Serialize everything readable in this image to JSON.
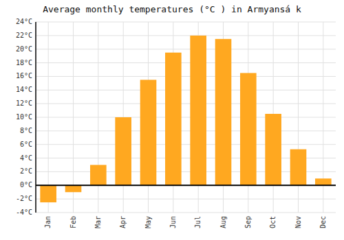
{
  "chart_data": {
    "type": "bar",
    "title": "Average monthly temperatures (°C ) in Armyansа́ k",
    "categories": [
      "Jan",
      "Feb",
      "Mar",
      "Apr",
      "May",
      "Jun",
      "Jul",
      "Aug",
      "Sep",
      "Oct",
      "Nov",
      "Dec"
    ],
    "values": [
      -2.5,
      -1.0,
      3.0,
      10.0,
      15.5,
      19.5,
      22.0,
      21.5,
      16.5,
      10.5,
      5.3,
      1.0
    ],
    "color": "#FFA820",
    "ylim": [
      -4,
      24
    ],
    "yticks": [
      {
        "value": -4,
        "label": "-4°C"
      },
      {
        "value": -2,
        "label": "-2°C"
      },
      {
        "value": 0,
        "label": "0°C"
      },
      {
        "value": 2,
        "label": "2°C"
      },
      {
        "value": 4,
        "label": "4°C"
      },
      {
        "value": 6,
        "label": "6°C"
      },
      {
        "value": 8,
        "label": "8°C"
      },
      {
        "value": 10,
        "label": "10°C"
      },
      {
        "value": 12,
        "label": "12°C"
      },
      {
        "value": 14,
        "label": "14°C"
      },
      {
        "value": 16,
        "label": "16°C"
      },
      {
        "value": 18,
        "label": "18°C"
      },
      {
        "value": 20,
        "label": "20°C"
      },
      {
        "value": 22,
        "label": "22°C"
      },
      {
        "value": 24,
        "label": "24°C"
      }
    ],
    "grid": true
  }
}
